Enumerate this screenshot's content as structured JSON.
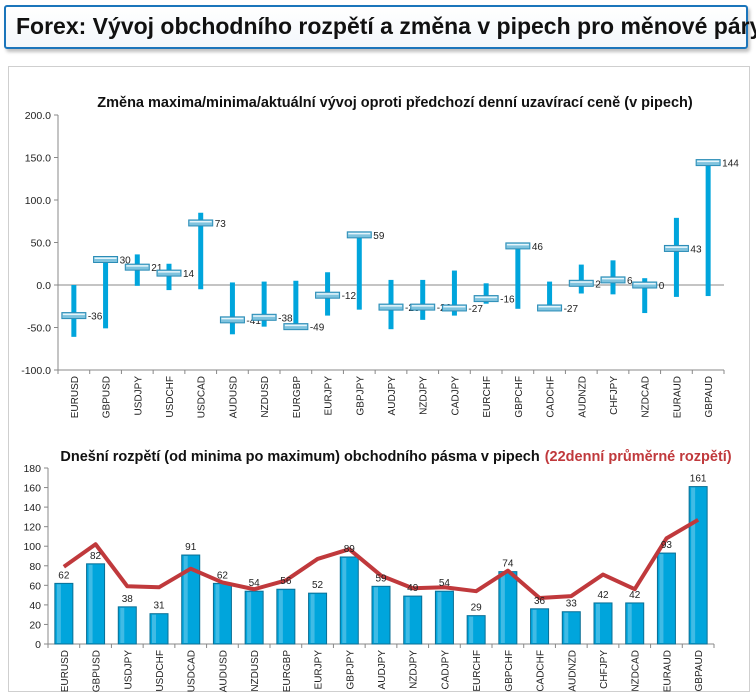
{
  "header": {
    "title": "Forex: Vývoj obchodního rozpětí a změna v pipech pro měnové páry"
  },
  "colors": {
    "bar": "#00a5dc",
    "line": "#c0393c",
    "header_border": "#1b75bb",
    "marker": "#7fc3de"
  },
  "chart_data": [
    {
      "type": "floating-range",
      "title": "Změna maxima/minima/aktuální vývoj oproti předchozí denní uzavírací ceně (v pipech)",
      "categories": [
        "EURUSD",
        "GBPUSD",
        "USDJPY",
        "USDCHF",
        "USDCAD",
        "AUDUSD",
        "NZDUSD",
        "EURGBP",
        "EURJPY",
        "GBPJPY",
        "AUDJPY",
        "NZDJPY",
        "CADJPY",
        "EURCHF",
        "GBPCHF",
        "CADCHF",
        "AUDNZD",
        "CHFJPY",
        "NZDCAD",
        "EURAUD",
        "GBPAUD"
      ],
      "high": [
        0,
        30,
        36,
        25,
        85,
        3,
        4,
        5,
        15,
        60,
        6,
        6,
        17,
        2,
        47,
        4,
        24,
        29,
        8,
        79,
        146
      ],
      "low": [
        -61,
        -51,
        -1,
        -6,
        -5,
        -58,
        -49,
        -48,
        -36,
        -29,
        -52,
        -41,
        -36,
        -22,
        -28,
        -30,
        -10,
        -11,
        -33,
        -14,
        -13
      ],
      "current": [
        -36,
        30,
        21,
        14,
        73,
        -41,
        -38,
        -49,
        -12,
        59,
        -26,
        -26,
        -27,
        -16,
        46,
        -27,
        2,
        6,
        0,
        43,
        144
      ],
      "current_labels": [
        "-36",
        "30",
        "21",
        "14",
        "73",
        "-41",
        "-38",
        "-49",
        "-12",
        "59",
        "-26",
        "-26",
        "-27",
        "-16",
        "46",
        "-27",
        "2",
        "6",
        "0",
        "43",
        "144"
      ],
      "ylim": [
        -100,
        200
      ],
      "yticks": [
        "200.0",
        "150.0",
        "100.0",
        "50.0",
        "0.0",
        "-50.0",
        "-100.0"
      ],
      "ytick_values": [
        200,
        150,
        100,
        50,
        0,
        -50,
        -100
      ],
      "grid": false,
      "legend": "none"
    },
    {
      "type": "bar+line",
      "title": "Dnešní rozpětí (od minima po maximum) obchodního pásma v pipech",
      "title_highlight": "(22denní průměrné rozpětí)",
      "categories": [
        "EURUSD",
        "GBPUSD",
        "USDJPY",
        "USDCHF",
        "USDCAD",
        "AUDUSD",
        "NZDUSD",
        "EURGBP",
        "EURJPY",
        "GBPJPY",
        "AUDJPY",
        "NZDJPY",
        "CADJPY",
        "EURCHF",
        "GBPCHF",
        "CADCHF",
        "AUDNZD",
        "CHFJPY",
        "NZDCAD",
        "EURAUD",
        "GBPAUD"
      ],
      "series": [
        {
          "type": "bar",
          "values": [
            62,
            82,
            38,
            31,
            91,
            62,
            54,
            56,
            52,
            89,
            59,
            49,
            54,
            29,
            74,
            36,
            33,
            42,
            42,
            93,
            161
          ],
          "labels": [
            "62",
            "82",
            "38",
            "31",
            "91",
            "62",
            "54",
            "56",
            "52",
            "89",
            "59",
            "49",
            "54",
            "29",
            "74",
            "36",
            "33",
            "42",
            "42",
            "93",
            "161"
          ]
        },
        {
          "type": "line",
          "values": [
            79,
            102,
            59,
            58,
            77,
            63,
            56,
            65,
            87,
            97,
            70,
            57,
            58,
            54,
            75,
            47,
            49,
            71,
            56,
            108,
            127
          ]
        }
      ],
      "ylim": [
        0,
        180
      ],
      "yticks": [
        "180",
        "160",
        "140",
        "120",
        "100",
        "80",
        "60",
        "40",
        "20",
        "0"
      ],
      "ytick_values": [
        180,
        160,
        140,
        120,
        100,
        80,
        60,
        40,
        20,
        0
      ],
      "grid": false,
      "legend": "none"
    }
  ]
}
